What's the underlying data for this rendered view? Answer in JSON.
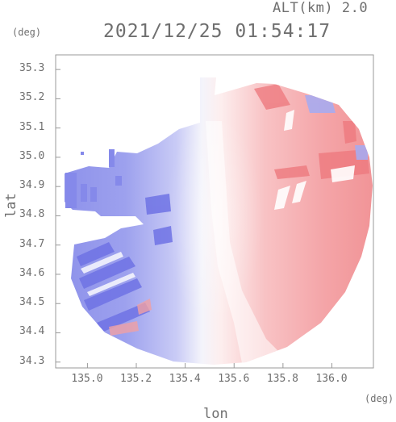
{
  "header": {
    "altitude": "ALT(km) 2.0",
    "datetime": "2021/12/25 01:54:17"
  },
  "axes": {
    "y_unit": "(deg)",
    "x_unit": "(deg)",
    "y_label": "lat",
    "x_label": "lon",
    "y_ticks": [
      "35.3",
      "35.2",
      "35.1",
      "35.0",
      "34.9",
      "34.8",
      "34.7",
      "34.6",
      "34.5",
      "34.4",
      "34.3"
    ],
    "x_ticks": [
      "135.0",
      "135.2",
      "135.4",
      "135.6",
      "135.8",
      "136.0"
    ],
    "lon_range": [
      134.87,
      136.17
    ],
    "lat_range": [
      34.28,
      35.35
    ]
  },
  "colors": {
    "approaching": "#7c80ea",
    "receding": "#f0888c",
    "neutral": "#f7f7fb",
    "axis": "#999999"
  },
  "map": {
    "type": "radar-doppler-velocity",
    "shown": "radial velocity field, blue toward / red away, approx. circular coverage"
  }
}
